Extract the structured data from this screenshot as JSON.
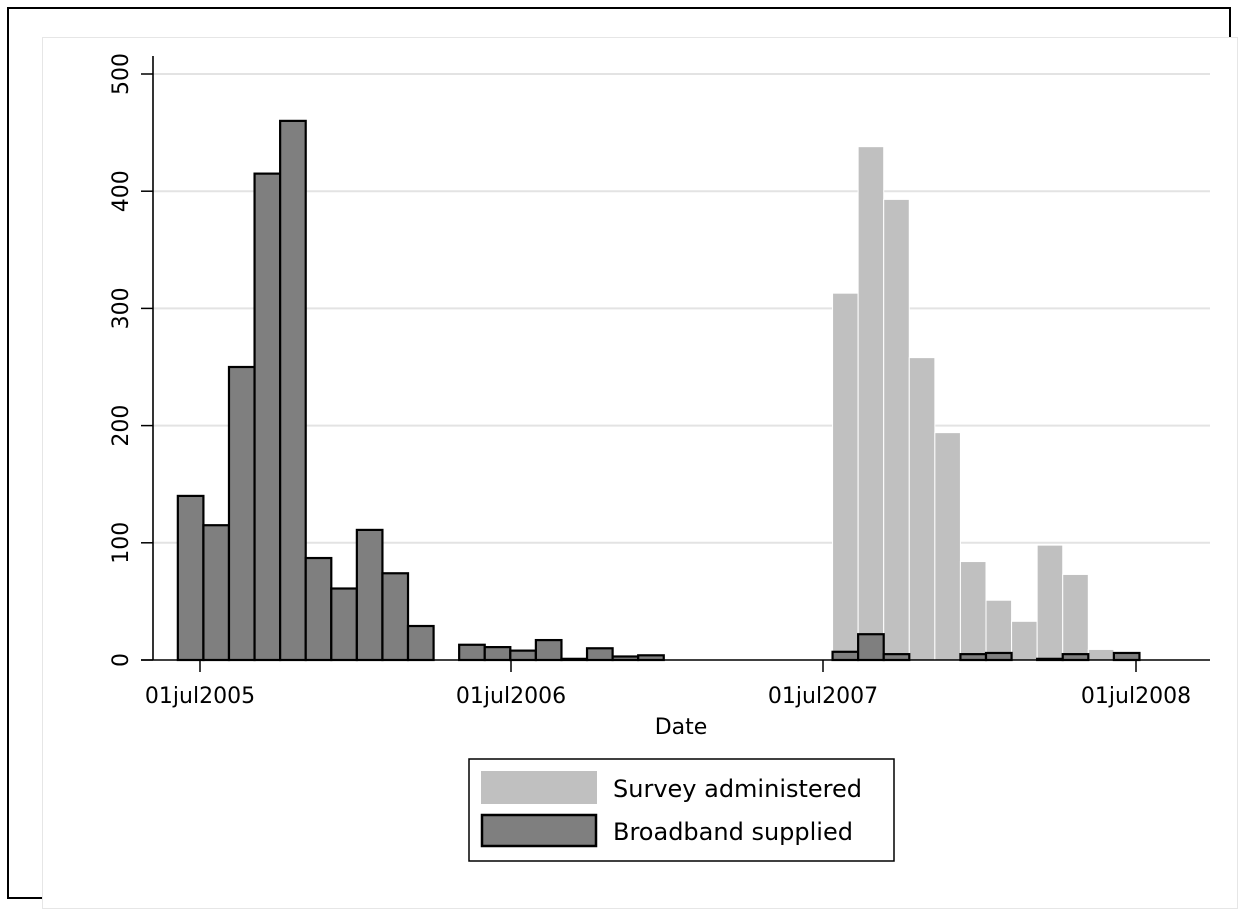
{
  "chart_data": {
    "type": "bar",
    "title": "",
    "xlabel": "Date",
    "ylabel": "",
    "x_ticks": [
      "01jul2005",
      "01jul2006",
      "01jul2007",
      "01jul2008"
    ],
    "y_ticks": [
      "0",
      "100",
      "200",
      "300",
      "400",
      "500"
    ],
    "ylim": [
      0,
      500
    ],
    "xlim": [
      "2005-06-01",
      "2008-08-20"
    ],
    "grid": true,
    "legend_position": "bottom-center",
    "bin_width_days": 30,
    "series": [
      {
        "name": "Survey administered",
        "color": "#c0c0c0",
        "bins": [
          {
            "start": "2007-07-13",
            "value": 313
          },
          {
            "start": "2007-08-12",
            "value": 438
          },
          {
            "start": "2007-09-11",
            "value": 393
          },
          {
            "start": "2007-10-11",
            "value": 258
          },
          {
            "start": "2007-11-10",
            "value": 194
          },
          {
            "start": "2007-12-10",
            "value": 84
          },
          {
            "start": "2008-01-09",
            "value": 51
          },
          {
            "start": "2008-02-08",
            "value": 33
          },
          {
            "start": "2008-03-09",
            "value": 98
          },
          {
            "start": "2008-04-08",
            "value": 73
          },
          {
            "start": "2008-05-08",
            "value": 9
          },
          {
            "start": "2008-06-07",
            "value": 3
          }
        ]
      },
      {
        "name": "Broadband supplied",
        "color": "#7f7f7f",
        "bins": [
          {
            "start": "2005-06-05",
            "value": 140
          },
          {
            "start": "2005-07-05",
            "value": 115
          },
          {
            "start": "2005-08-04",
            "value": 250
          },
          {
            "start": "2005-09-03",
            "value": 415
          },
          {
            "start": "2005-10-03",
            "value": 460
          },
          {
            "start": "2005-11-02",
            "value": 87
          },
          {
            "start": "2005-12-02",
            "value": 61
          },
          {
            "start": "2006-01-01",
            "value": 111
          },
          {
            "start": "2006-01-31",
            "value": 74
          },
          {
            "start": "2006-03-02",
            "value": 29
          },
          {
            "start": "2006-05-01",
            "value": 13
          },
          {
            "start": "2006-05-31",
            "value": 11
          },
          {
            "start": "2006-06-30",
            "value": 8
          },
          {
            "start": "2006-07-30",
            "value": 17
          },
          {
            "start": "2006-08-29",
            "value": 1
          },
          {
            "start": "2006-09-28",
            "value": 10
          },
          {
            "start": "2006-10-28",
            "value": 3
          },
          {
            "start": "2006-11-27",
            "value": 4
          },
          {
            "start": "2007-07-13",
            "value": 7
          },
          {
            "start": "2007-08-12",
            "value": 22
          },
          {
            "start": "2007-09-11",
            "value": 5
          },
          {
            "start": "2007-12-10",
            "value": 5
          },
          {
            "start": "2008-01-09",
            "value": 6
          },
          {
            "start": "2008-03-09",
            "value": 1
          },
          {
            "start": "2008-04-08",
            "value": 5
          },
          {
            "start": "2008-06-07",
            "value": 6
          }
        ]
      }
    ]
  }
}
